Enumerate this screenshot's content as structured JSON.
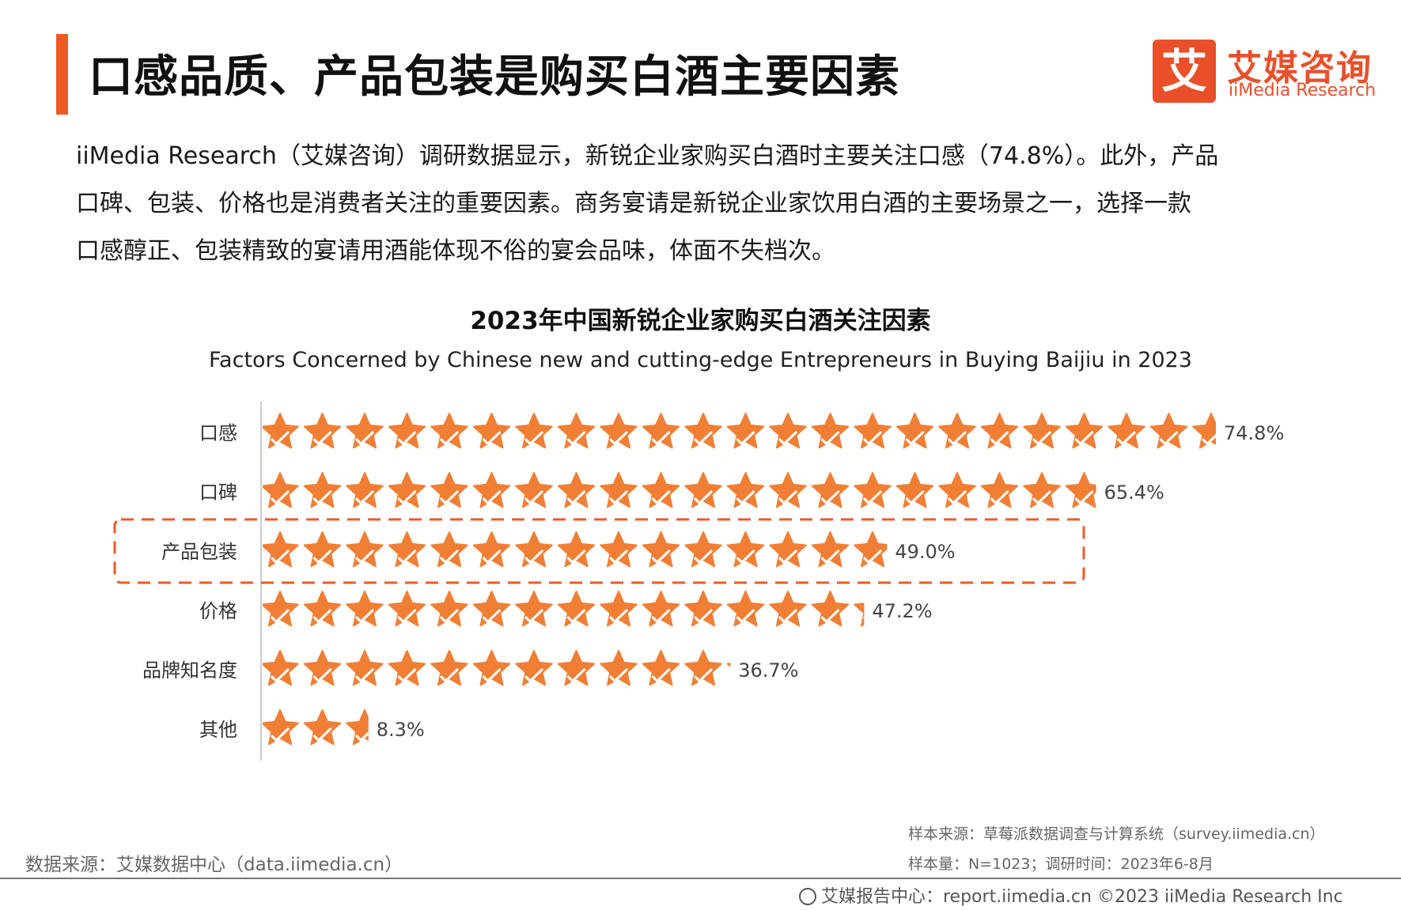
{
  "header": {
    "title": "口感品质、产品包装是购买白酒主要因素",
    "accent_color": "#ee5a24"
  },
  "logo": {
    "mark": "艾",
    "name_cn": "艾媒咨询",
    "name_en": "iiMedia Research",
    "color": "#e9502a"
  },
  "intro": {
    "lines": [
      "iiMedia Research（艾媒咨询）调研数据显示，新锐企业家购买白酒时主要关注口感（74.8%）。此外，产品",
      "口碑、包装、价格也是消费者关注的重要因素。商务宴请是新锐企业家饮用白酒的主要场景之一，选择一款",
      "口感醇正、包装精致的宴请用酒能体现不俗的宴会品味，体面不失档次。"
    ]
  },
  "chart_data": {
    "type": "bar",
    "title": "2023年中国新锐企业家购买白酒关注因素",
    "subtitle": "Factors Concerned by Chinese new and cutting-edge Entrepreneurs in Buying Baijiu in 2023",
    "categories": [
      "口感",
      "口碑",
      "产品包装",
      "价格",
      "品牌知名度",
      "其他"
    ],
    "values": [
      74.8,
      65.4,
      49.0,
      47.2,
      36.7,
      8.3
    ],
    "value_labels": [
      "74.8%",
      "65.4%",
      "49.0%",
      "47.2%",
      "36.7%",
      "8.3%"
    ],
    "unit": "%",
    "orientation": "horizontal",
    "marker": "star-icon",
    "bar_color": "#f07f35",
    "highlighted_category": "产品包装",
    "highlight_color": "#ee5a24",
    "xlabel": "",
    "ylabel": ""
  },
  "footer": {
    "data_source": "数据来源：艾媒数据中心（data.iimedia.cn）",
    "sample_source": "样本来源：草莓派数据调查与计算系统（survey.iimedia.cn）",
    "sample_size": "样本量：N=1023；调研时间：2023年6-8月",
    "report_center": "艾媒报告中心：report.iimedia.cn   ©2023  iiMedia Research  Inc",
    "globe_icon": "globe-icon"
  }
}
